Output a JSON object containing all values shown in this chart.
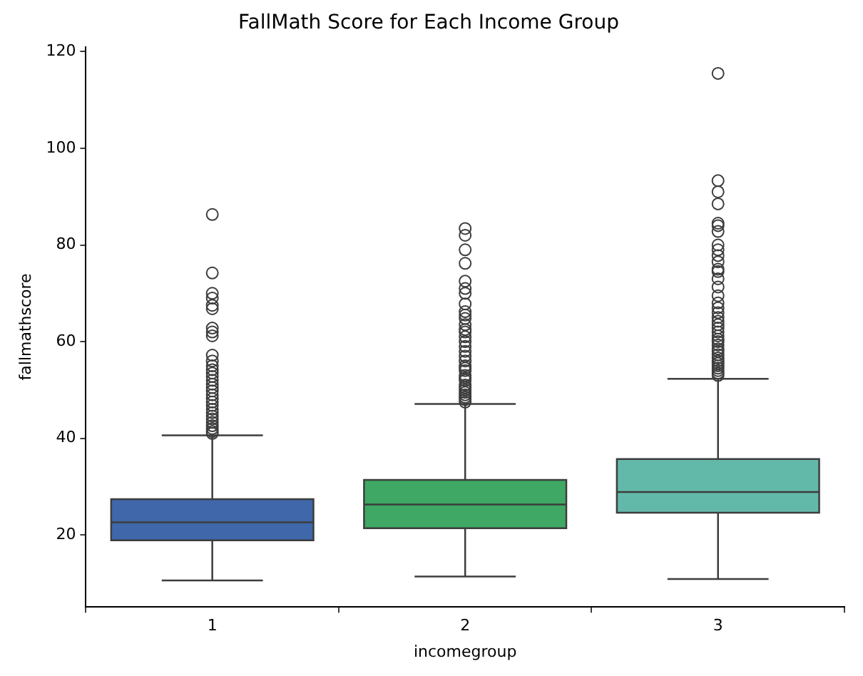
{
  "chart_data": {
    "type": "box",
    "title": "FallMath Score for Each Income Group",
    "xlabel": "incomegroup",
    "ylabel": "fallmathscore",
    "categories": [
      "1",
      "2",
      "3"
    ],
    "colors": [
      "#3f67a9",
      "#3fa864",
      "#63b9a9"
    ],
    "boxes": [
      {
        "low": 10.6,
        "q1": 18.9,
        "median": 22.6,
        "q3": 27.4,
        "high": 40.6,
        "outliers": [
          86.3,
          74.2,
          70,
          69,
          67.5,
          66.8,
          62.8,
          62,
          61.2,
          57.2,
          56,
          55,
          54.2,
          53.5,
          52.8,
          52,
          51.2,
          50.5,
          49.8,
          49,
          48.2,
          47.5,
          46.8,
          46,
          45.3,
          44.6,
          44,
          43.3,
          42.6,
          42,
          41.4,
          41
        ]
      },
      {
        "low": 11.4,
        "q1": 21.4,
        "median": 26.3,
        "q3": 31.4,
        "high": 47.1,
        "outliers": [
          83.4,
          82,
          79,
          76.2,
          72.5,
          71,
          70,
          67.8,
          66.2,
          65.5,
          64.8,
          63.5,
          62.5,
          62,
          61,
          60,
          59,
          58,
          57,
          56,
          55,
          54.5,
          54,
          53,
          52.5,
          52,
          51,
          50.5,
          50,
          49.5,
          49,
          48.5,
          48,
          47.5
        ]
      },
      {
        "low": 10.9,
        "q1": 24.6,
        "median": 28.9,
        "q3": 35.7,
        "high": 52.3,
        "outliers": [
          115.5,
          93.3,
          91,
          88.5,
          84.5,
          84,
          82.8,
          80,
          79,
          77.8,
          76.5,
          75,
          74.5,
          73,
          71.3,
          69.5,
          68,
          67,
          66,
          65,
          64.2,
          63.5,
          62.8,
          62,
          61.2,
          60.5,
          60,
          59.3,
          58.5,
          58,
          57.3,
          56.6,
          56,
          55.5,
          55,
          54.5,
          54,
          53.5,
          53
        ]
      }
    ],
    "ylim": [
      5.1,
      121
    ],
    "yticks": [
      20,
      40,
      60,
      80,
      100,
      120
    ]
  }
}
